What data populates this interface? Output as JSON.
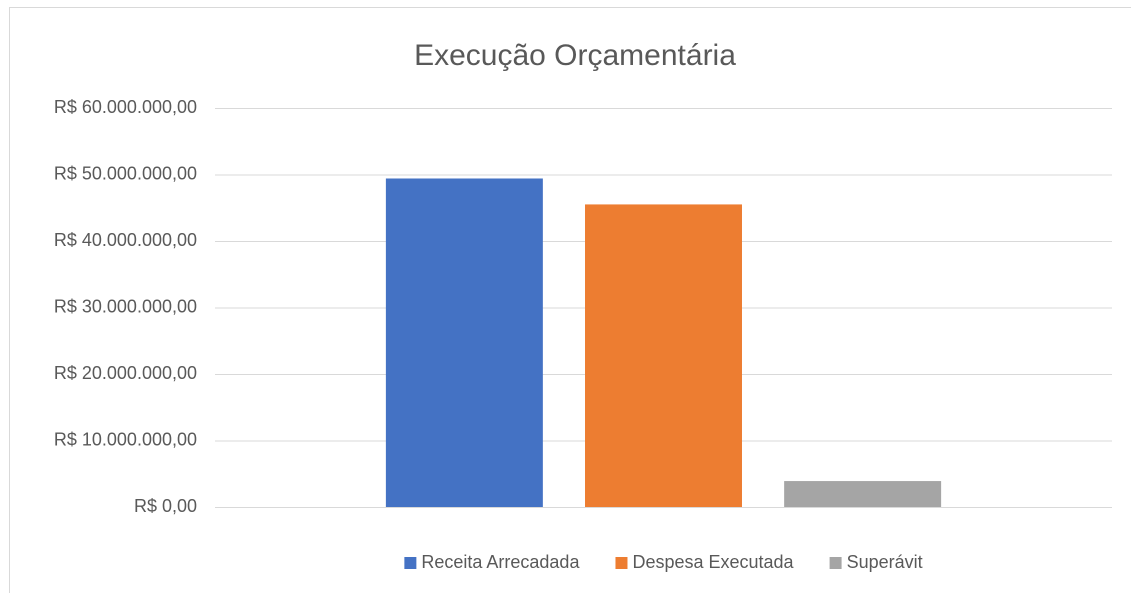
{
  "chart_data": {
    "type": "bar",
    "title": "Execução Orçamentária",
    "categories": [
      null
    ],
    "series": [
      {
        "name": "Receita Arrecadada",
        "color": "#4472c4",
        "values": [
          49400000
        ]
      },
      {
        "name": "Despesa Executada",
        "color": "#ed7d31",
        "values": [
          45500000
        ]
      },
      {
        "name": "Superávit",
        "color": "#a5a5a5",
        "values": [
          3900000
        ]
      }
    ],
    "ylim": [
      0,
      60000000
    ],
    "yticks": [
      {
        "value": 0,
        "label": "R$ 0,00"
      },
      {
        "value": 10000000,
        "label": "R$ 10.000.000,00"
      },
      {
        "value": 20000000,
        "label": "R$ 20.000.000,00"
      },
      {
        "value": 30000000,
        "label": "R$ 30.000.000,00"
      },
      {
        "value": 40000000,
        "label": "R$ 40.000.000,00"
      },
      {
        "value": 50000000,
        "label": "R$ 50.000.000,00"
      },
      {
        "value": 60000000,
        "label": "R$ 60.000.000,00"
      }
    ],
    "grid": true,
    "legend": "bottom"
  }
}
